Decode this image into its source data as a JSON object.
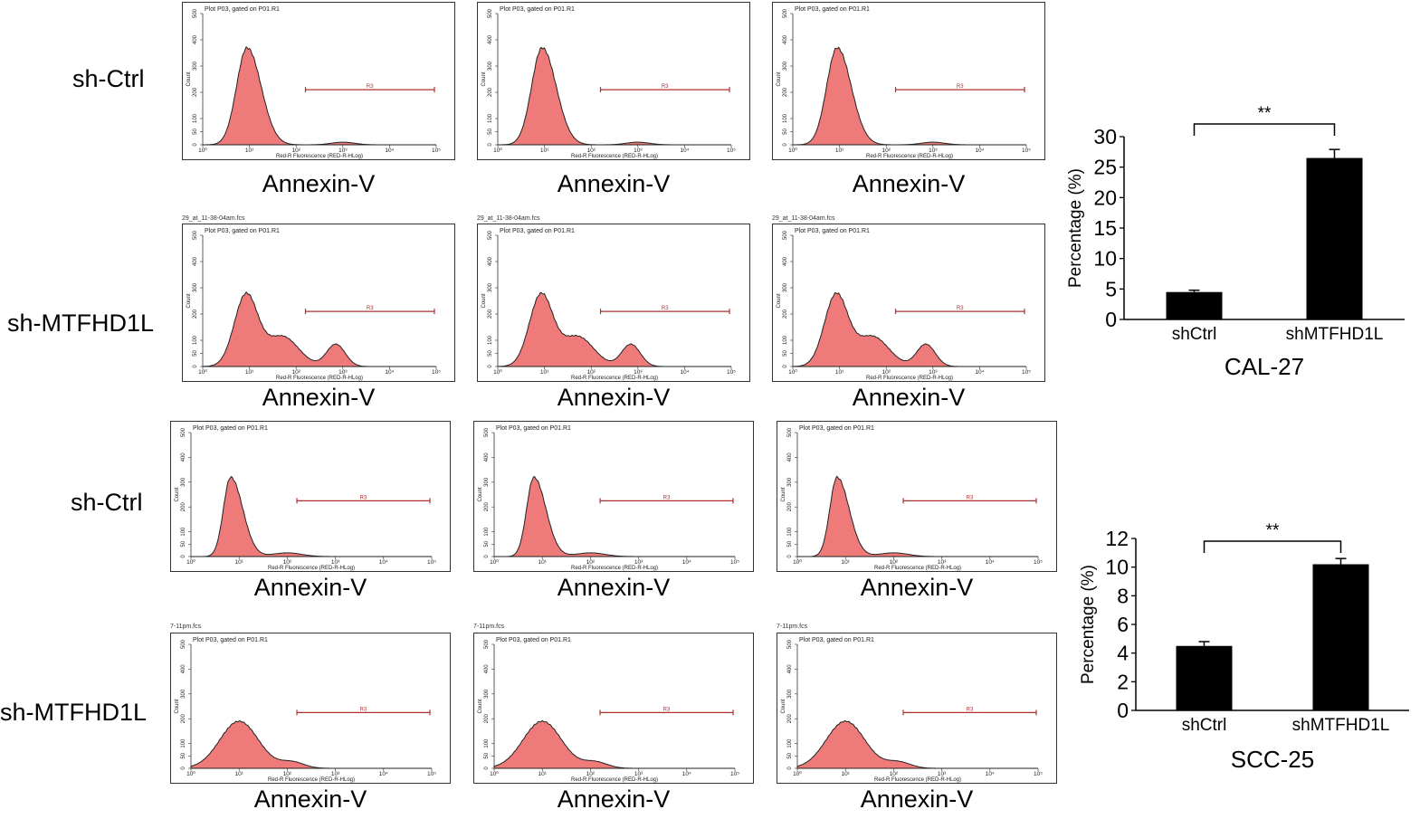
{
  "hist_common": {
    "plot_title": "Plot P03, gated on P01.R1",
    "xaxis": "Red-R Fluorescence (RED-R-HLog)",
    "yaxis": "Count",
    "gate": "R3",
    "xcaption": "Annexin-V",
    "yticks": [
      "0",
      "50",
      "100",
      "200",
      "300",
      "400",
      "500"
    ],
    "xticks": [
      "10⁰",
      "10¹",
      "10²",
      "10³",
      "10⁴",
      "10⁵"
    ]
  },
  "row_labels": [
    "sh-Ctrl",
    "sh-MTFHD1L",
    "sh-Ctrl",
    "sh-MTFHD1L"
  ],
  "filenames": {
    "row1": "29_at_11-38-04am.fcs",
    "row3": "7-11pm.fcs"
  },
  "chart_data": [
    {
      "type": "bar",
      "title": "CAL-27",
      "ylabel": "Percentage (%)",
      "categories": [
        "shCtrl",
        "shMTFHD1L"
      ],
      "values": [
        4.5,
        26.5
      ],
      "errors": [
        0.3,
        1.4
      ],
      "ylim": [
        0,
        30
      ],
      "yticks": [
        "0",
        "5",
        "10",
        "15",
        "20",
        "25",
        "30"
      ],
      "significance": "**",
      "bar_color": "#000000"
    },
    {
      "type": "bar",
      "title": "SCC-25",
      "ylabel": "Percentage (%)",
      "categories": [
        "shCtrl",
        "shMTFHD1L"
      ],
      "values": [
        4.5,
        10.2
      ],
      "errors": [
        0.3,
        0.4
      ],
      "ylim": [
        0,
        12
      ],
      "yticks": [
        "0",
        "2",
        "4",
        "6",
        "8",
        "10",
        "12"
      ],
      "significance": "**",
      "bar_color": "#000000"
    }
  ],
  "colors": {
    "hist_fill": "#ee7a7a",
    "hist_stroke": "#222222",
    "gate": "#b03030"
  }
}
